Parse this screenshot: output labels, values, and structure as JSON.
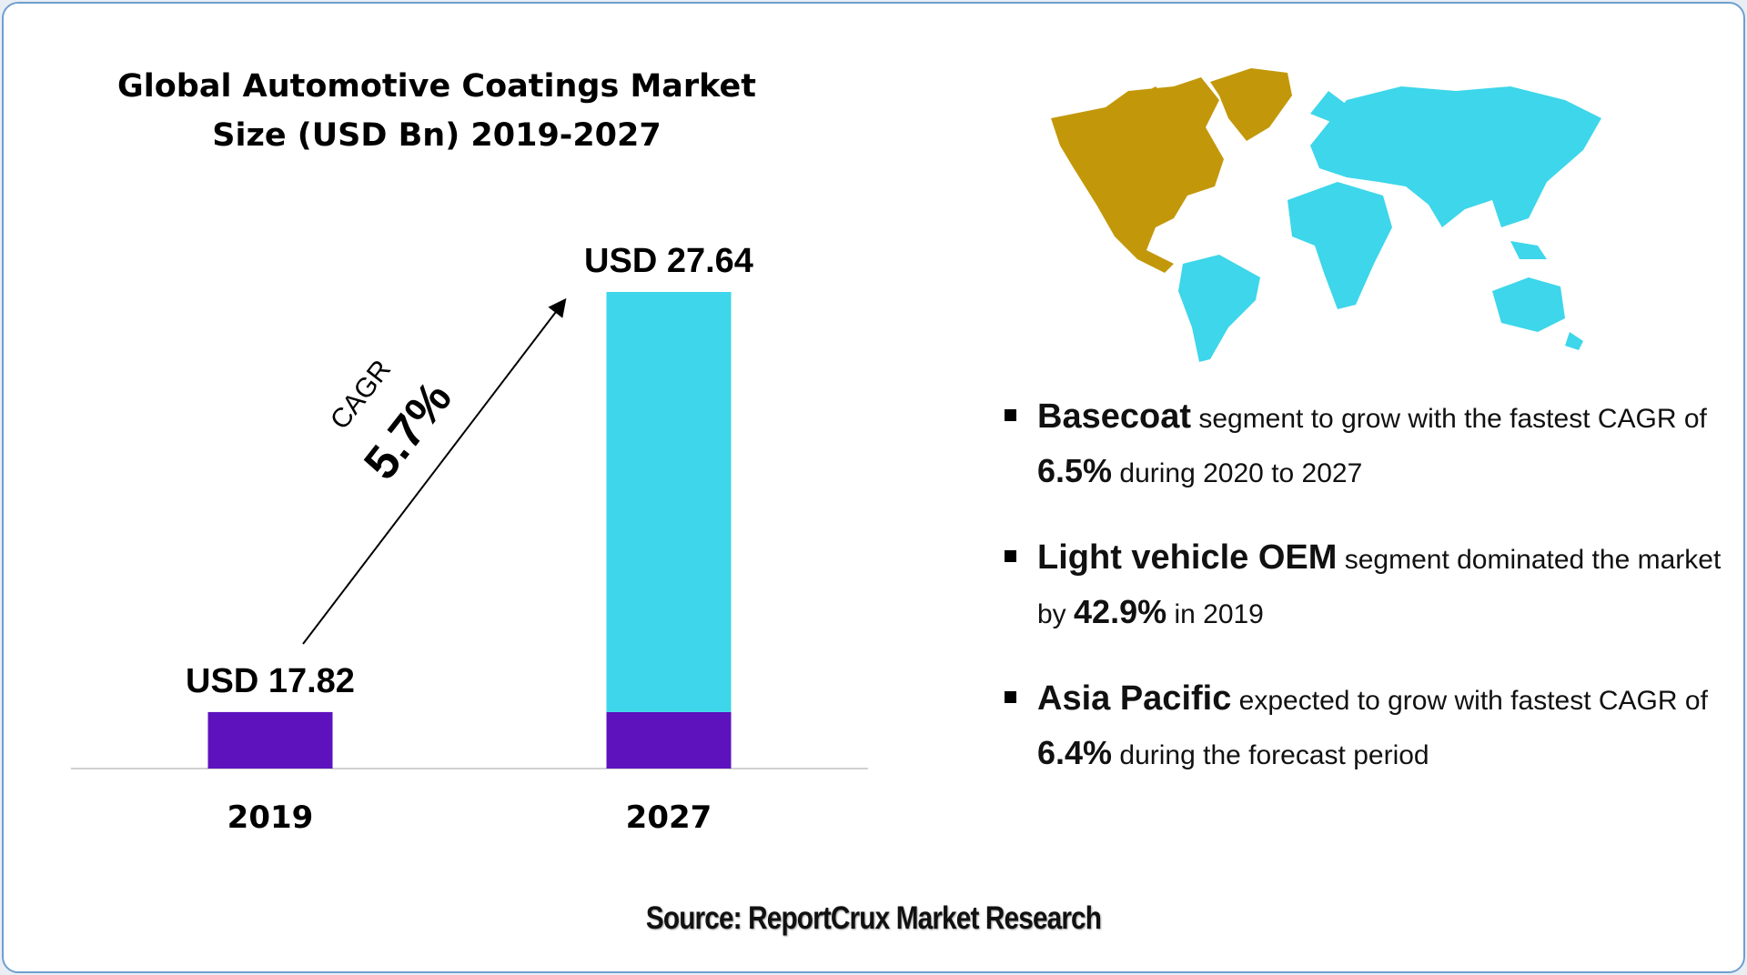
{
  "title_lines": [
    "Global Automotive Coatings Market",
    "Size (USD Bn) 2019-2027"
  ],
  "chart_data": {
    "type": "bar",
    "title": "Global Automotive Coatings Market Size (USD Bn) 2019-2027",
    "categories": [
      "2019",
      "2027"
    ],
    "values": [
      17.82,
      27.64
    ],
    "data_labels": [
      "USD 17.82",
      "USD 27.64"
    ],
    "ylim": [
      16.5,
      27.64
    ],
    "grid": false,
    "legend": "none",
    "colors": {
      "base": "#5e12bd",
      "growth": "#3dd6ea"
    },
    "annotation": {
      "label": "CAGR",
      "value": "5.7%"
    }
  },
  "map": {
    "colors": {
      "north_america": "#c2980a",
      "rest_of_world": "#3dd6ea"
    }
  },
  "bullets": [
    {
      "highlight": "Basecoat",
      "text1": " segment to grow with the fastest CAGR of ",
      "number": "6.5%",
      "text2": " during 2020 to 2027"
    },
    {
      "highlight": "Light vehicle OEM",
      "text1": " segment dominated the market by ",
      "number": "42.9%",
      "text2": " in 2019"
    },
    {
      "highlight": "Asia Pacific",
      "text1": " expected to grow with fastest CAGR of ",
      "number": "6.4%",
      "text2": " during the forecast period"
    }
  ],
  "source": "Source: ReportCrux Market Research"
}
